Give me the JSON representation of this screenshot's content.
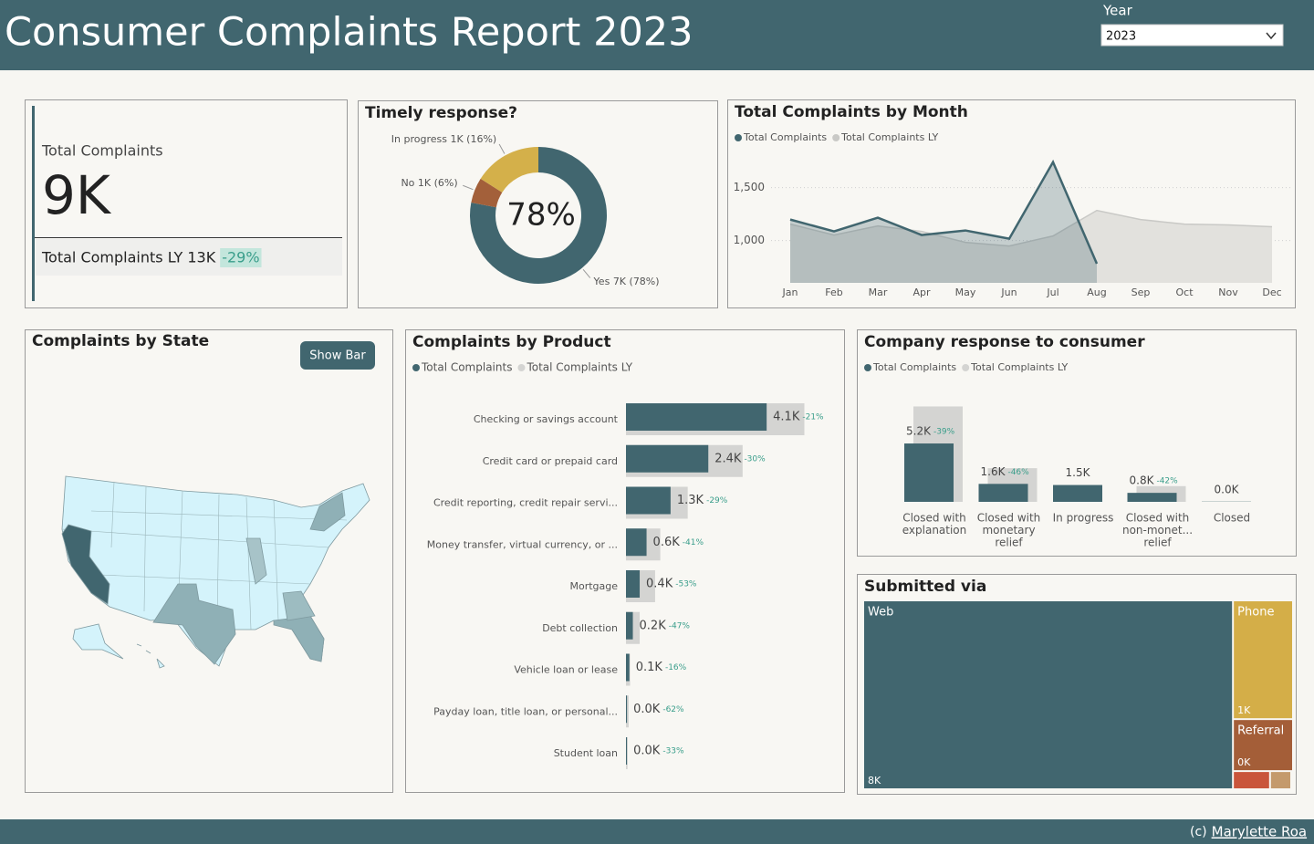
{
  "header": {
    "title": "Consumer Complaints Report 2023",
    "year_label": "Year",
    "year_value": "2023"
  },
  "kpi": {
    "label": "Total Complaints",
    "value": "9K",
    "ly_label": "Total Complaints LY 13K",
    "change": "-29%"
  },
  "timely": {
    "type": "donut",
    "title": "Timely response?",
    "center_label": "78%",
    "categories": [
      "Yes",
      "No",
      "In progress"
    ],
    "values": [
      78,
      6,
      16
    ],
    "value_labels": [
      "7K (78%)",
      "1K (6%)",
      "1K (16%)"
    ],
    "colors": [
      "#41666f",
      "#a3603a",
      "#d4b04a"
    ]
  },
  "monthly": {
    "type": "area",
    "title": "Total Complaints by Month",
    "categories": [
      "Jan",
      "Feb",
      "Mar",
      "Apr",
      "May",
      "Jun",
      "Jul",
      "Aug",
      "Sep",
      "Oct",
      "Nov",
      "Dec"
    ],
    "series": [
      {
        "name": "Total Complaints",
        "color": "#41666f",
        "values": [
          1198,
          1086,
          1216,
          1052,
          1095,
          1017,
          1741,
          781,
          null,
          null,
          null,
          null
        ]
      },
      {
        "name": "Total Complaints LY",
        "color": "#c9c9c6",
        "values": [
          1155,
          1052,
          1138,
          1086,
          983,
          948,
          1043,
          1284,
          1198,
          1155,
          1147,
          1130
        ]
      }
    ],
    "ylim": [
      600,
      1850
    ],
    "yticks": [
      {
        "value": 1000,
        "label": "1,000"
      },
      {
        "value": 1500,
        "label": "1,500"
      }
    ],
    "grid": true
  },
  "state": {
    "title": "Complaints by State",
    "button": "Show Bar"
  },
  "product": {
    "type": "hbar",
    "title": "Complaints by Product",
    "categories": [
      "Checking or savings account",
      "Credit card or prepaid card",
      "Credit reporting, credit repair servi...",
      "Money transfer, virtual currency, or ...",
      "Mortgage",
      "Debt collection",
      "Vehicle loan or lease",
      "Payday loan, title loan, or personal...",
      "Student loan"
    ],
    "series": [
      {
        "name": "Total Complaints",
        "color": "#41666f",
        "values": [
          4.1,
          2.4,
          1.3,
          0.6,
          0.4,
          0.2,
          0.1,
          0.03,
          0.03
        ],
        "value_labels": [
          "4.1K",
          "2.4K",
          "1.3K",
          "0.6K",
          "0.4K",
          "0.2K",
          "0.1K",
          "0.0K",
          "0.0K"
        ],
        "changes": [
          "-21%",
          "-30%",
          "-29%",
          "-41%",
          "-53%",
          "-47%",
          "-16%",
          "-62%",
          "-33%"
        ]
      },
      {
        "name": "Total Complaints LY",
        "color": "#d4d4d2",
        "values": [
          5.2,
          3.4,
          1.8,
          1.0,
          0.85,
          0.4,
          0.12,
          0.08,
          0.045
        ]
      }
    ]
  },
  "response": {
    "type": "bar",
    "title": "Company response to consumer",
    "categories": [
      [
        "Closed with",
        "explanation"
      ],
      [
        "Closed with",
        "monetary",
        "relief"
      ],
      [
        "In progress"
      ],
      [
        "Closed with",
        "non-monet...",
        "relief"
      ],
      [
        "Closed"
      ]
    ],
    "series": [
      {
        "name": "Total Complaints",
        "color": "#41666f",
        "values": [
          5.2,
          1.6,
          1.5,
          0.8,
          0.02
        ],
        "value_labels": [
          "5.2K",
          "1.6K",
          "1.5K",
          "0.8K",
          "0.0K"
        ],
        "changes": [
          "-39%",
          "-46%",
          null,
          "-42%",
          null
        ]
      },
      {
        "name": "Total Complaints LY",
        "color": "#d4d4d2",
        "values": [
          8.5,
          3.0,
          null,
          1.4,
          null
        ]
      }
    ]
  },
  "submitted": {
    "type": "treemap",
    "title": "Submitted via",
    "categories": [
      "Web",
      "Phone",
      "Referral",
      null,
      null
    ],
    "values": [
      8,
      0.8,
      0.35,
      0.07,
      0.04
    ],
    "value_labels": [
      "8K",
      "1K",
      "0K",
      null,
      null
    ],
    "colors": [
      "#41666f",
      "#d4ae48",
      "#a45e38",
      "#c9553b",
      "#c49a6c"
    ]
  },
  "footer": {
    "prefix": "(c)",
    "author": "Marylette Roa"
  }
}
